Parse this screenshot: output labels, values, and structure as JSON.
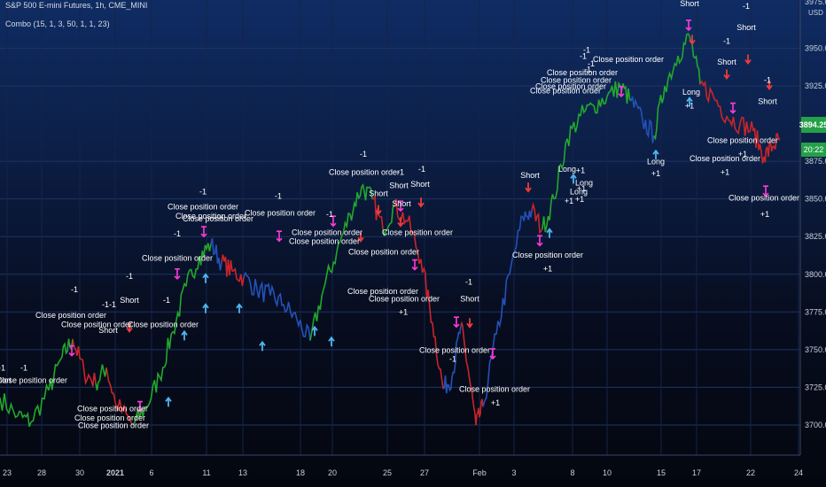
{
  "header": {
    "title": "S&P 500 E-mini Futures, 1h, CME_MINI",
    "indicator": "Combo (15, 1, 3, 50, 1, 1, 23)"
  },
  "price_axis": {
    "currency": "USD",
    "price_tag": "3894.25",
    "time_tag": "20:22",
    "top_partial_label": "3975.00"
  },
  "colors": {
    "up": "#22a82c",
    "down": "#c9252a",
    "neutral": "#2451b8",
    "long_arrow": "#4fb4ee",
    "short_arrow": "#ee3b3b",
    "close_marker": "#ff3ad6",
    "tag": "#24a148"
  },
  "chart_data": {
    "type": "line",
    "title": "S&P 500 E-mini Futures, 1h, CME_MINI",
    "ylim": [
      3680,
      3982
    ],
    "y_ticks": [
      3700,
      3725,
      3750,
      3775,
      3800,
      3825,
      3850,
      3875,
      3925,
      3950
    ],
    "x_ticks": [
      "23",
      "28",
      "30",
      "2021",
      "6",
      "11",
      "13",
      "18",
      "20",
      "25",
      "27",
      "Feb",
      "3",
      "8",
      "10",
      "15",
      "17",
      "22",
      "24"
    ],
    "x_tick_pos": [
      8,
      47,
      90,
      130,
      171,
      233,
      274,
      339,
      375,
      437,
      479,
      541,
      580,
      646,
      685,
      746,
      786,
      847,
      901
    ],
    "series": [
      {
        "values": [
          [
            0,
            3718
          ],
          [
            20,
            3706
          ],
          [
            35,
            3702
          ],
          [
            55,
            3723
          ],
          [
            70,
            3745
          ],
          [
            82,
            3757
          ],
          [
            95,
            3735
          ],
          [
            108,
            3728
          ],
          [
            120,
            3738
          ],
          [
            130,
            3715
          ],
          [
            150,
            3700
          ],
          [
            165,
            3712
          ],
          [
            180,
            3732
          ],
          [
            195,
            3762
          ],
          [
            210,
            3792
          ],
          [
            225,
            3812
          ],
          [
            238,
            3820
          ],
          [
            250,
            3808
          ],
          [
            262,
            3802
          ],
          [
            275,
            3798
          ],
          [
            290,
            3790
          ],
          [
            305,
            3786
          ],
          [
            320,
            3780
          ],
          [
            335,
            3770
          ],
          [
            350,
            3756
          ],
          [
            365,
            3790
          ],
          [
            380,
            3815
          ],
          [
            395,
            3840
          ],
          [
            408,
            3858
          ],
          [
            420,
            3850
          ],
          [
            432,
            3830
          ],
          [
            445,
            3845
          ],
          [
            460,
            3835
          ],
          [
            475,
            3810
          ],
          [
            488,
            3768
          ],
          [
            500,
            3724
          ],
          [
            510,
            3732
          ],
          [
            520,
            3766
          ],
          [
            528,
            3738
          ],
          [
            537,
            3700
          ],
          [
            545,
            3712
          ],
          [
            560,
            3760
          ],
          [
            575,
            3800
          ],
          [
            590,
            3838
          ],
          [
            600,
            3842
          ],
          [
            612,
            3830
          ],
          [
            625,
            3850
          ],
          [
            640,
            3890
          ],
          [
            655,
            3905
          ],
          [
            670,
            3912
          ],
          [
            685,
            3918
          ],
          [
            700,
            3925
          ],
          [
            712,
            3915
          ],
          [
            725,
            3902
          ],
          [
            738,
            3892
          ],
          [
            750,
            3925
          ],
          [
            765,
            3945
          ],
          [
            778,
            3958
          ],
          [
            790,
            3926
          ],
          [
            805,
            3918
          ],
          [
            820,
            3905
          ],
          [
            835,
            3900
          ],
          [
            850,
            3895
          ],
          [
            862,
            3878
          ],
          [
            872,
            3885
          ],
          [
            880,
            3890
          ]
        ],
        "segment_colors": [
          "up",
          "up",
          "up",
          "up",
          "up",
          "down",
          "down",
          "up",
          "down",
          "down",
          "up",
          "up",
          "up",
          "up",
          "up",
          "up",
          "neutral",
          "down",
          "down",
          "neutral",
          "neutral",
          "neutral",
          "neutral",
          "neutral",
          "up",
          "up",
          "up",
          "up",
          "up",
          "down",
          "up",
          "down",
          "down",
          "down",
          "down",
          "neutral",
          "neutral",
          "down",
          "down",
          "down",
          "neutral",
          "neutral",
          "neutral",
          "neutral",
          "down",
          "up",
          "up",
          "up",
          "up",
          "up",
          "up",
          "up",
          "neutral",
          "neutral",
          "up",
          "up",
          "up",
          "up",
          "down",
          "down",
          "down",
          "down",
          "down",
          "down",
          "down"
        ]
      }
    ],
    "signals": {
      "short": [
        {
          "x": 146,
          "price": 3762
        },
        {
          "x": 407,
          "price": 3822
        },
        {
          "x": 427,
          "price": 3840
        },
        {
          "x": 452,
          "price": 3832
        },
        {
          "x": 475,
          "price": 3845
        },
        {
          "x": 530,
          "price": 3765
        },
        {
          "x": 596,
          "price": 3855
        },
        {
          "x": 781,
          "price": 3953
        },
        {
          "x": 820,
          "price": 3930
        },
        {
          "x": 844,
          "price": 3940
        },
        {
          "x": 868,
          "price": 3923
        }
      ],
      "long": [
        {
          "x": 190,
          "price": 3718
        },
        {
          "x": 232,
          "price": 3800
        },
        {
          "x": 232,
          "price": 3780
        },
        {
          "x": 208,
          "price": 3762
        },
        {
          "x": 270,
          "price": 3780
        },
        {
          "x": 296,
          "price": 3755
        },
        {
          "x": 355,
          "price": 3765
        },
        {
          "x": 374,
          "price": 3758
        },
        {
          "x": 620,
          "price": 3830
        },
        {
          "x": 647,
          "price": 3866
        },
        {
          "x": 740,
          "price": 3882
        },
        {
          "x": 778,
          "price": 3917
        }
      ],
      "close": [
        {
          "x": 81,
          "price": 3749
        },
        {
          "x": 158,
          "price": 3712
        },
        {
          "x": 200,
          "price": 3800
        },
        {
          "x": 230,
          "price": 3828
        },
        {
          "x": 315,
          "price": 3825
        },
        {
          "x": 376,
          "price": 3835
        },
        {
          "x": 452,
          "price": 3845
        },
        {
          "x": 468,
          "price": 3806
        },
        {
          "x": 515,
          "price": 3768
        },
        {
          "x": 556,
          "price": 3747
        },
        {
          "x": 609,
          "price": 3822
        },
        {
          "x": 701,
          "price": 3921
        },
        {
          "x": 777,
          "price": 3965
        },
        {
          "x": 827,
          "price": 3910
        },
        {
          "x": 864,
          "price": 3855
        }
      ],
      "labels": [
        {
          "x": 2,
          "price": 3736,
          "text": "-1"
        },
        {
          "x": 27,
          "price": 3736,
          "text": "-1"
        },
        {
          "x": 2,
          "price": 3728,
          "text": "Short"
        },
        {
          "x": 36,
          "price": 3728,
          "text": "Close position order"
        },
        {
          "x": 84,
          "price": 3788,
          "text": "-1"
        },
        {
          "x": 80,
          "price": 3771,
          "text": "Close position order"
        },
        {
          "x": 109,
          "price": 3765,
          "text": "Close position order"
        },
        {
          "x": 119,
          "price": 3778,
          "text": "-1"
        },
        {
          "x": 127,
          "price": 3778,
          "text": "-1"
        },
        {
          "x": 122,
          "price": 3761,
          "text": "Short"
        },
        {
          "x": 146,
          "price": 3797,
          "text": "-1"
        },
        {
          "x": 146,
          "price": 3781,
          "text": "Short"
        },
        {
          "x": 127,
          "price": 3709,
          "text": "Close position order"
        },
        {
          "x": 124,
          "price": 3703,
          "text": "Close position order"
        },
        {
          "x": 128,
          "price": 3698,
          "text": "Close position order"
        },
        {
          "x": 188,
          "price": 3781,
          "text": "-1"
        },
        {
          "x": 184,
          "price": 3765,
          "text": "Close position order"
        },
        {
          "x": 200,
          "price": 3825,
          "text": "-1"
        },
        {
          "x": 229,
          "price": 3853,
          "text": "-1"
        },
        {
          "x": 229,
          "price": 3843,
          "text": "Close position order"
        },
        {
          "x": 238,
          "price": 3837,
          "text": "Close position order"
        },
        {
          "x": 246,
          "price": 3835,
          "text": "Close position order"
        },
        {
          "x": 314,
          "price": 3850,
          "text": "-1"
        },
        {
          "x": 316,
          "price": 3839,
          "text": "Close position order"
        },
        {
          "x": 200,
          "price": 3809,
          "text": "Close position order"
        },
        {
          "x": 372,
          "price": 3838,
          "text": "-1"
        },
        {
          "x": 369,
          "price": 3826,
          "text": "Close position order"
        },
        {
          "x": 366,
          "price": 3820,
          "text": "Close position order"
        },
        {
          "x": 433,
          "price": 3813,
          "text": "Close position order"
        },
        {
          "x": 410,
          "price": 3878,
          "text": "-1"
        },
        {
          "x": 411,
          "price": 3866,
          "text": "Close position order"
        },
        {
          "x": 452,
          "price": 3866,
          "text": "-1"
        },
        {
          "x": 476,
          "price": 3868,
          "text": "-1"
        },
        {
          "x": 450,
          "price": 3857,
          "text": "Short"
        },
        {
          "x": 474,
          "price": 3858,
          "text": "Short"
        },
        {
          "x": 427,
          "price": 3852,
          "text": "Short"
        },
        {
          "x": 453,
          "price": 3845,
          "text": "Short"
        },
        {
          "x": 471,
          "price": 3826,
          "text": "Close position order"
        },
        {
          "x": 432,
          "price": 3787,
          "text": "Close position order"
        },
        {
          "x": 456,
          "price": 3782,
          "text": "Close position order"
        },
        {
          "x": 455,
          "price": 3773,
          "text": "+1"
        },
        {
          "x": 529,
          "price": 3793,
          "text": "-1"
        },
        {
          "x": 530,
          "price": 3782,
          "text": "Short"
        },
        {
          "x": 513,
          "price": 3748,
          "text": "Close position order"
        },
        {
          "x": 511,
          "price": 3742,
          "text": "-1"
        },
        {
          "x": 558,
          "price": 3722,
          "text": "Close position order"
        },
        {
          "x": 559,
          "price": 3713,
          "text": "+1"
        },
        {
          "x": 598,
          "price": 3864,
          "text": "Short"
        },
        {
          "x": 618,
          "price": 3811,
          "text": "Close position order"
        },
        {
          "x": 618,
          "price": 3802,
          "text": "+1"
        },
        {
          "x": 640,
          "price": 3868,
          "text": "Long"
        },
        {
          "x": 655,
          "price": 3867,
          "text": "+1"
        },
        {
          "x": 659,
          "price": 3859,
          "text": "Long"
        },
        {
          "x": 656,
          "price": 3855,
          "text": "+1"
        },
        {
          "x": 653,
          "price": 3853,
          "text": "Long"
        },
        {
          "x": 642,
          "price": 3847,
          "text": "+1"
        },
        {
          "x": 654,
          "price": 3848,
          "text": "+1"
        },
        {
          "x": 662,
          "price": 3947,
          "text": "-1"
        },
        {
          "x": 658,
          "price": 3943,
          "text": "-1"
        },
        {
          "x": 667,
          "price": 3938,
          "text": "-1"
        },
        {
          "x": 663,
          "price": 3934,
          "text": "-1"
        },
        {
          "x": 657,
          "price": 3932,
          "text": "Close position order"
        },
        {
          "x": 650,
          "price": 3927,
          "text": "Close position order"
        },
        {
          "x": 644,
          "price": 3923,
          "text": "Close position order"
        },
        {
          "x": 638,
          "price": 3920,
          "text": "Close position order"
        },
        {
          "x": 709,
          "price": 3941,
          "text": "Close position order"
        },
        {
          "x": 740,
          "price": 3873,
          "text": "Long"
        },
        {
          "x": 740,
          "price": 3865,
          "text": "+1"
        },
        {
          "x": 779,
          "price": 3987,
          "text": "Short"
        },
        {
          "x": 778,
          "price": 3978,
          "text": "Short"
        },
        {
          "x": 780,
          "price": 3919,
          "text": "Long"
        },
        {
          "x": 778,
          "price": 3910,
          "text": "+1"
        },
        {
          "x": 842,
          "price": 3976,
          "text": "-1"
        },
        {
          "x": 842,
          "price": 3962,
          "text": "Short"
        },
        {
          "x": 820,
          "price": 3953,
          "text": "-1"
        },
        {
          "x": 820,
          "price": 3939,
          "text": "Short"
        },
        {
          "x": 866,
          "price": 3927,
          "text": "-1"
        },
        {
          "x": 866,
          "price": 3913,
          "text": "Short"
        },
        {
          "x": 838,
          "price": 3887,
          "text": "Close position order"
        },
        {
          "x": 838,
          "price": 3878,
          "text": "+1"
        },
        {
          "x": 818,
          "price": 3875,
          "text": "Close position order"
        },
        {
          "x": 818,
          "price": 3866,
          "text": "+1"
        },
        {
          "x": 862,
          "price": 3849,
          "text": "Close position order"
        },
        {
          "x": 863,
          "price": 3838,
          "text": "+1"
        }
      ]
    }
  }
}
